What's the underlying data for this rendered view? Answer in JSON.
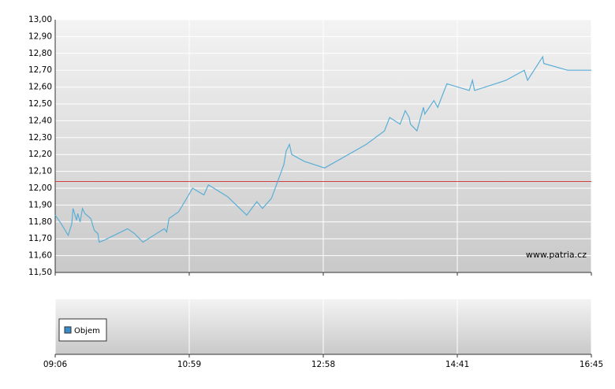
{
  "chart_data": {
    "type": "line",
    "x": [
      "09:06",
      "09:11",
      "09:17",
      "09:20",
      "09:21",
      "09:24",
      "09:25",
      "09:27",
      "09:29",
      "09:31",
      "09:36",
      "09:39",
      "09:42",
      "09:43",
      "09:47",
      "10:07",
      "10:13",
      "10:20",
      "10:38",
      "10:40",
      "10:42",
      "10:50",
      "10:56",
      "11:02",
      "11:12",
      "11:16",
      "11:33",
      "11:50",
      "11:59",
      "12:04",
      "12:12",
      "12:17",
      "12:23",
      "12:25",
      "12:28",
      "12:30",
      "12:41",
      "12:59",
      "13:31",
      "13:45",
      "13:49",
      "13:57",
      "14:01",
      "14:04",
      "14:05",
      "14:10",
      "14:15",
      "14:16",
      "14:23",
      "14:26",
      "14:33",
      "14:52",
      "14:55",
      "14:57",
      "15:26",
      "15:43",
      "15:46",
      "16:00",
      "16:01",
      "16:23",
      "16:45"
    ],
    "series": [
      {
        "color": "#5aaed6",
        "values": [
          11.84,
          11.79,
          11.72,
          11.79,
          11.88,
          11.81,
          11.85,
          11.8,
          11.88,
          11.85,
          11.82,
          11.75,
          11.73,
          11.68,
          11.69,
          11.76,
          11.73,
          11.68,
          11.76,
          11.74,
          11.82,
          11.86,
          11.93,
          12.0,
          11.96,
          12.02,
          11.95,
          11.84,
          11.92,
          11.88,
          11.94,
          12.03,
          12.14,
          12.22,
          12.26,
          12.2,
          12.16,
          12.12,
          12.26,
          12.34,
          12.42,
          12.38,
          12.46,
          12.42,
          12.38,
          12.34,
          12.48,
          12.44,
          12.52,
          12.48,
          12.62,
          12.58,
          12.64,
          12.58,
          12.64,
          12.7,
          12.64,
          12.78,
          12.74,
          12.7,
          12.7
        ]
      }
    ],
    "reference_line": {
      "value": 12.04,
      "color": "#d04040"
    },
    "xlim": [
      "09:06",
      "16:45"
    ],
    "xticks": [
      "09:06",
      "10:59",
      "12:58",
      "14:41",
      "16:45"
    ],
    "ylim": [
      11.5,
      13.0
    ],
    "yticks": [
      {
        "value": 11.5,
        "label": "11,50"
      },
      {
        "value": 11.6,
        "label": "11,60"
      },
      {
        "value": 11.7,
        "label": "11,70"
      },
      {
        "value": 11.8,
        "label": "11,80"
      },
      {
        "value": 11.9,
        "label": "11,90"
      },
      {
        "value": 12.0,
        "label": "12,00"
      },
      {
        "value": 12.1,
        "label": "12,10"
      },
      {
        "value": 12.2,
        "label": "12,20"
      },
      {
        "value": 12.3,
        "label": "12,30"
      },
      {
        "value": 12.4,
        "label": "12,40"
      },
      {
        "value": 12.5,
        "label": "12,50"
      },
      {
        "value": 12.6,
        "label": "12,60"
      },
      {
        "value": 12.7,
        "label": "12,70"
      },
      {
        "value": 12.8,
        "label": "12,80"
      },
      {
        "value": 12.9,
        "label": "12,90"
      },
      {
        "value": 13.0,
        "label": "13,00"
      }
    ],
    "grid": true,
    "watermark": "www.patria.cz",
    "volume_panel": {
      "legend": "Objem",
      "color": "#3a8cc8"
    }
  }
}
